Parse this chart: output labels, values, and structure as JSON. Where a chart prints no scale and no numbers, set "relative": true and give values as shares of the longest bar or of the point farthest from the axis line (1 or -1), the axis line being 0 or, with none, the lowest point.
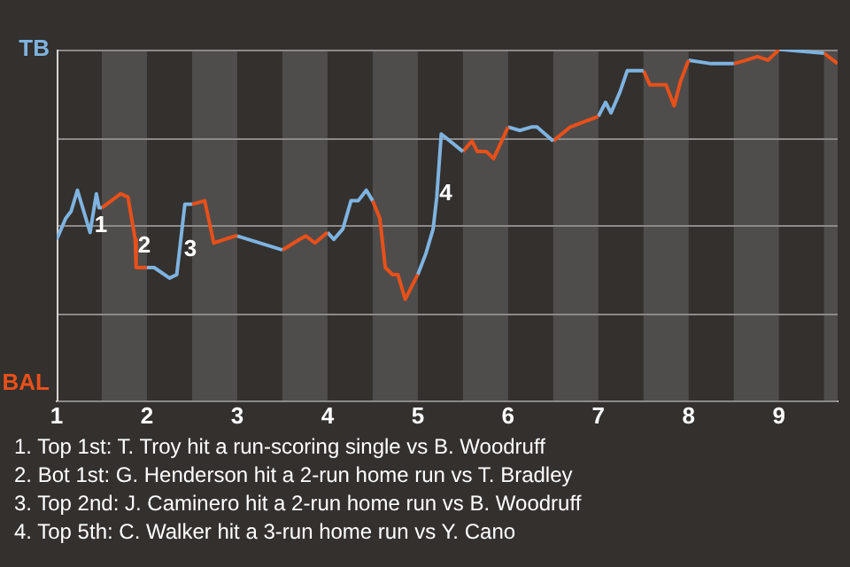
{
  "chart_data": {
    "type": "line",
    "relative": true,
    "xlim": [
      1,
      9.65
    ],
    "xticks": [
      1,
      2,
      3,
      4,
      5,
      6,
      7,
      8,
      9
    ],
    "legend": false,
    "marker": "none",
    "line_style": "solid",
    "series": [
      {
        "color": "#7fb3e0",
        "x": [
          1,
          1.1,
          1.16,
          1.23,
          1.37,
          1.44,
          1.47,
          1.5
        ],
        "values": [
          0.46,
          0.52,
          0.54,
          0.6,
          0.48,
          0.59,
          0.55,
          0.55
        ]
      },
      {
        "color": "#e8501a",
        "x": [
          1.5,
          1.71,
          1.79,
          1.87,
          1.88,
          2
        ],
        "values": [
          0.55,
          0.59,
          0.58,
          0.46,
          0.38,
          0.38
        ]
      },
      {
        "color": "#7fb3e0",
        "x": [
          2,
          2.08,
          2.25,
          2.33,
          2.42,
          2.5
        ],
        "values": [
          0.38,
          0.38,
          0.35,
          0.36,
          0.56,
          0.56
        ]
      },
      {
        "color": "#e8501a",
        "x": [
          2.5,
          2.64,
          2.74,
          2.98,
          3
        ],
        "values": [
          0.56,
          0.57,
          0.45,
          0.47,
          0.47
        ]
      },
      {
        "color": "#7fb3e0",
        "x": [
          3,
          3.5
        ],
        "values": [
          0.47,
          0.43
        ]
      },
      {
        "color": "#e8501a",
        "x": [
          3.5,
          3.69,
          3.76,
          3.86,
          4
        ],
        "values": [
          0.43,
          0.46,
          0.47,
          0.45,
          0.48
        ]
      },
      {
        "color": "#7fb3e0",
        "x": [
          4,
          4.07,
          4.17,
          4.26,
          4.34,
          4.43,
          4.5
        ],
        "values": [
          0.48,
          0.46,
          0.49,
          0.57,
          0.57,
          0.6,
          0.57
        ]
      },
      {
        "color": "#e8501a",
        "x": [
          4.5,
          4.58,
          4.64,
          4.72,
          4.78,
          4.86,
          5
        ],
        "values": [
          0.57,
          0.52,
          0.38,
          0.36,
          0.36,
          0.29,
          0.36
        ]
      },
      {
        "color": "#7fb3e0",
        "x": [
          5,
          5.09,
          5.17,
          5.21,
          5.26,
          5.5
        ],
        "values": [
          0.36,
          0.42,
          0.49,
          0.58,
          0.76,
          0.71
        ]
      },
      {
        "color": "#e8501a",
        "x": [
          5.5,
          5.6,
          5.66,
          5.76,
          5.84,
          6
        ],
        "values": [
          0.71,
          0.74,
          0.71,
          0.71,
          0.69,
          0.78
        ]
      },
      {
        "color": "#7fb3e0",
        "x": [
          6,
          6.13,
          6.26,
          6.32,
          6.5
        ],
        "values": [
          0.78,
          0.77,
          0.78,
          0.78,
          0.74
        ]
      },
      {
        "color": "#e8501a",
        "x": [
          6.5,
          6.69,
          7
        ],
        "values": [
          0.74,
          0.78,
          0.81
        ]
      },
      {
        "color": "#7fb3e0",
        "x": [
          7,
          7.08,
          7.14,
          7.24,
          7.32,
          7.5
        ],
        "values": [
          0.81,
          0.85,
          0.82,
          0.88,
          0.94,
          0.94
        ]
      },
      {
        "color": "#e8501a",
        "x": [
          7.5,
          7.57,
          7.75,
          7.84,
          7.91,
          8
        ],
        "values": [
          0.94,
          0.9,
          0.9,
          0.84,
          0.91,
          0.97
        ]
      },
      {
        "color": "#7fb3e0",
        "x": [
          8,
          8.25,
          8.5
        ],
        "values": [
          0.97,
          0.96,
          0.96
        ]
      },
      {
        "color": "#e8501a",
        "x": [
          8.5,
          8.64,
          8.76,
          8.88,
          9
        ],
        "values": [
          0.96,
          0.97,
          0.98,
          0.97,
          1
        ]
      },
      {
        "color": "#7fb3e0",
        "x": [
          9,
          9.04,
          9.5
        ],
        "values": [
          1,
          1,
          0.99
        ]
      },
      {
        "color": "#e8501a",
        "x": [
          9.5,
          9.65
        ],
        "values": [
          0.99,
          0.96
        ]
      }
    ],
    "ref_lines": [
      {
        "axis": "y",
        "value": 0,
        "label": "BAL"
      },
      {
        "axis": "y",
        "value": 0.25,
        "label": null
      },
      {
        "axis": "y",
        "value": 0.5,
        "label": null
      },
      {
        "axis": "y",
        "value": 0.75,
        "label": null
      },
      {
        "axis": "y",
        "value": 1,
        "label": "TB"
      }
    ],
    "bands": [
      {
        "axis": "x",
        "from": 1.5,
        "to": 2,
        "color": "#4f4d4b"
      },
      {
        "axis": "x",
        "from": 2.5,
        "to": 3,
        "color": "#4f4d4b"
      },
      {
        "axis": "x",
        "from": 3.5,
        "to": 4,
        "color": "#4f4d4b"
      },
      {
        "axis": "x",
        "from": 4.5,
        "to": 5,
        "color": "#4f4d4b"
      },
      {
        "axis": "x",
        "from": 5.5,
        "to": 6,
        "color": "#4f4d4b"
      },
      {
        "axis": "x",
        "from": 6.5,
        "to": 7,
        "color": "#4f4d4b"
      },
      {
        "axis": "x",
        "from": 7.5,
        "to": 8,
        "color": "#4f4d4b"
      },
      {
        "axis": "x",
        "from": 8.5,
        "to": 9,
        "color": "#4f4d4b"
      },
      {
        "axis": "x",
        "from": 9.5,
        "to": 9.65,
        "color": "#4f4d4b"
      }
    ],
    "annotations": [
      {
        "text": "1",
        "x": 1.49,
        "y": 0.5
      },
      {
        "text": "2",
        "x": 1.97,
        "y": 0.44
      },
      {
        "text": "3",
        "x": 2.48,
        "y": 0.43
      },
      {
        "text": "4",
        "x": 5.31,
        "y": 0.59
      },
      "1. Top 1st: T. Troy hit a run-scoring single vs B. Woodruff",
      "2. Bot 1st: G. Henderson hit a 2-run home run vs T. Bradley",
      "3. Top 2nd: J. Caminero hit a 2-run home run vs B. Woodruff",
      "4. Top 5th: C. Walker hit a 3-run home run vs Y. Cano"
    ]
  }
}
